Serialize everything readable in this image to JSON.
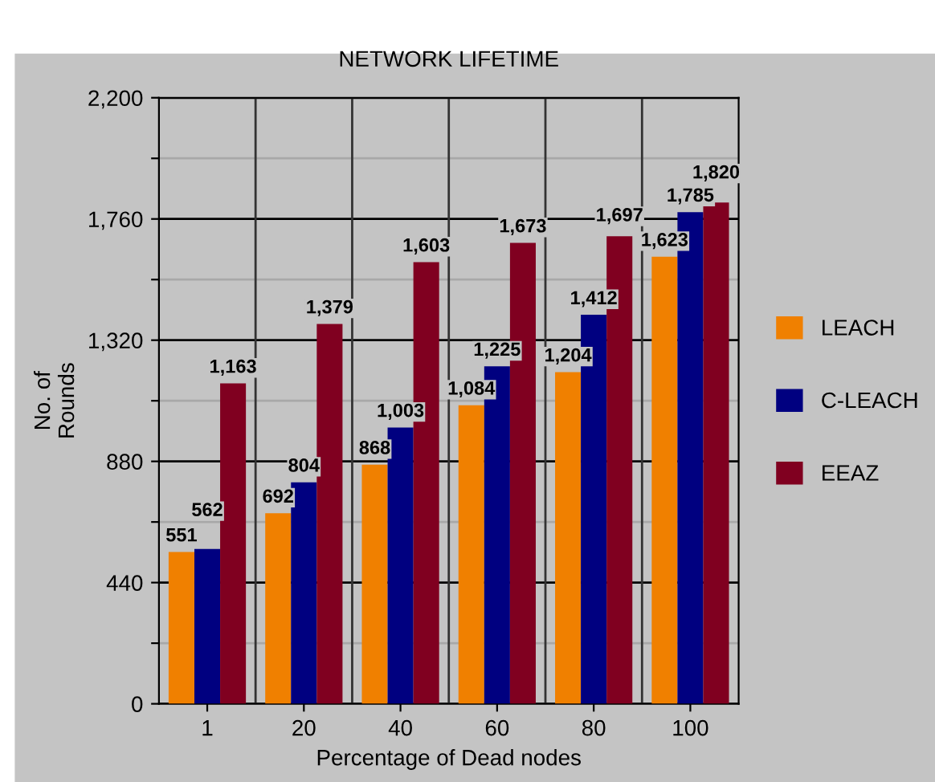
{
  "chart_data": {
    "type": "bar",
    "title": "NETWORK LIFETIME",
    "xlabel": "Percentage of Dead nodes",
    "ylabel": "No. of\nRounds",
    "categories": [
      "1",
      "20",
      "40",
      "60",
      "80",
      "100"
    ],
    "series": [
      {
        "name": "LEACH",
        "color": "#f08000",
        "values": [
          551,
          692,
          868,
          1084,
          1204,
          1623
        ],
        "value_labels": [
          "551",
          "692",
          "868",
          "1,084",
          "1,204",
          "1,623"
        ]
      },
      {
        "name": "C-LEACH",
        "color": "#000080",
        "values": [
          562,
          804,
          1003,
          1225,
          1412,
          1785
        ],
        "value_labels": [
          "562",
          "804",
          "1,003",
          "1,225",
          "1,412",
          "1,785"
        ]
      },
      {
        "name": "EEAZ",
        "color": "#800020",
        "values": [
          1163,
          1379,
          1603,
          1673,
          1697,
          1820
        ],
        "value_labels": [
          "1,163",
          "1,379",
          "1,603",
          "1,673",
          "1,697",
          "1,820"
        ]
      }
    ],
    "ylim": [
      0,
      2200
    ],
    "yticks": [
      {
        "value": 0,
        "label": "0"
      },
      {
        "value": 220,
        "label": null
      },
      {
        "value": 440,
        "label": "440"
      },
      {
        "value": 660,
        "label": null
      },
      {
        "value": 880,
        "label": "880"
      },
      {
        "value": 1100,
        "label": null
      },
      {
        "value": 1320,
        "label": "1,320"
      },
      {
        "value": 1540,
        "label": null
      },
      {
        "value": 1760,
        "label": "1,760"
      },
      {
        "value": 1980,
        "label": null
      },
      {
        "value": 2200,
        "label": "2,200"
      }
    ],
    "grid": true,
    "legend": "right"
  }
}
